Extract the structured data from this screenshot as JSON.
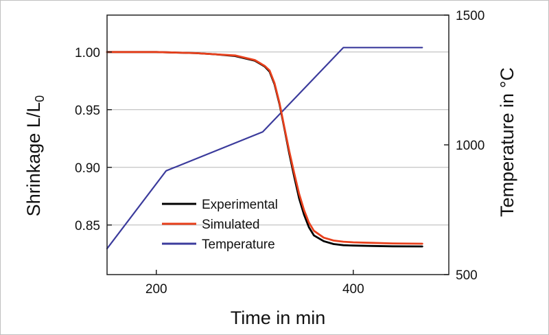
{
  "chart_data": {
    "type": "line",
    "xlabel": "Time in min",
    "ylabel_left": "Shrinkage L/L",
    "ylabel_left_sub": "0",
    "ylabel_right": "Temperature in °C",
    "xlim": [
      150,
      497
    ],
    "ylim_left": [
      0.807,
      1.032
    ],
    "ylim_right": [
      500,
      1500
    ],
    "xticks": [
      200,
      400
    ],
    "xtick_labels": [
      "200",
      "400"
    ],
    "yticks_left": [
      0.85,
      0.9,
      0.95,
      1.0
    ],
    "ytick_labels_left": [
      "0.85",
      "0.90",
      "0.95",
      "1.00"
    ],
    "yticks_right": [
      500,
      1000,
      1500
    ],
    "ytick_labels_right": [
      "500",
      "1000",
      "1500"
    ],
    "grid": "horizontal",
    "legend_position": "lower-left",
    "series": [
      {
        "name": "Experimental",
        "axis": "left",
        "color": "#000000",
        "x": [
          150,
          180,
          200,
          220,
          240,
          260,
          280,
          300,
          310,
          315,
          320,
          325,
          330,
          335,
          340,
          345,
          350,
          355,
          360,
          370,
          380,
          390,
          400,
          420,
          440,
          470
        ],
        "y": [
          1.0,
          1.0,
          1.0,
          0.9995,
          0.999,
          0.998,
          0.9965,
          0.9925,
          0.9875,
          0.983,
          0.972,
          0.955,
          0.934,
          0.912,
          0.892,
          0.873,
          0.859,
          0.848,
          0.841,
          0.836,
          0.8335,
          0.8325,
          0.8322,
          0.8318,
          0.8315,
          0.8314
        ]
      },
      {
        "name": "Simulated",
        "axis": "left",
        "color": "#e8401c",
        "x": [
          150,
          180,
          200,
          220,
          240,
          260,
          280,
          300,
          310,
          315,
          320,
          325,
          330,
          335,
          340,
          345,
          350,
          355,
          360,
          370,
          380,
          390,
          400,
          420,
          440,
          470
        ],
        "y": [
          1.0,
          1.0,
          1.0,
          0.9995,
          0.999,
          0.998,
          0.997,
          0.993,
          0.988,
          0.984,
          0.973,
          0.956,
          0.935,
          0.914,
          0.895,
          0.877,
          0.863,
          0.852,
          0.845,
          0.839,
          0.8365,
          0.8355,
          0.835,
          0.8345,
          0.834,
          0.8338
        ]
      },
      {
        "name": "Temperature",
        "axis": "right",
        "color": "#3b3b9c",
        "x": [
          150,
          210,
          308,
          390,
          470
        ],
        "y": [
          600,
          900,
          1050,
          1375,
          1375
        ]
      }
    ]
  }
}
